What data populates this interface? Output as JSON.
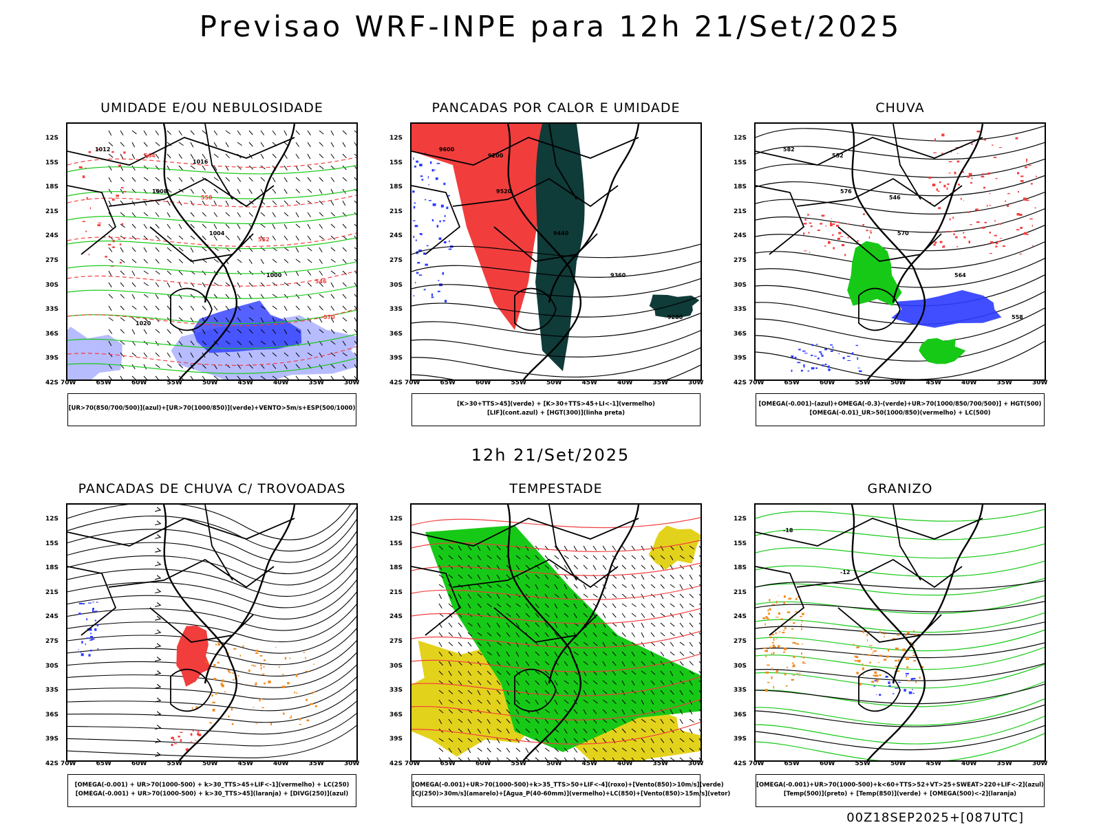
{
  "title": "Previsao WRF-INPE  para 12h 21/Set/2025",
  "mid_date": "12h 21/Set/2025",
  "run_stamp": "00Z18SEP2025+[087UTC]",
  "colors": {
    "blue": "#2b3bff",
    "green": "#17c917",
    "red": "#f23d3d",
    "darkteal": "#0f3b38",
    "yellow": "#e3d21b",
    "orange": "#f08a1f",
    "lightblue": "#aab0ff"
  },
  "axes": {
    "lat_ticks": [
      "12S",
      "15S",
      "18S",
      "21S",
      "24S",
      "27S",
      "30S",
      "33S",
      "36S",
      "39S",
      "42S"
    ],
    "lon_ticks": [
      "70W",
      "65W",
      "60W",
      "55W",
      "50W",
      "45W",
      "40W",
      "35W",
      "30W"
    ]
  },
  "chart_data": [
    {
      "type": "heatmap",
      "id": "umidade",
      "title": "UMIDADE E/OU NEBULOSIDADE",
      "legend": [
        "[UR>70(850/700/500)](azul)+[UR>70(1000/850)](verde)+VENTO>5m/s+ESP(500/1000)"
      ],
      "contour_labels": [
        "1012",
        "1008",
        "1004",
        "1000",
        "570",
        "564",
        "558",
        "552",
        "546",
        "1020",
        "1016"
      ]
    },
    {
      "type": "heatmap",
      "id": "pancadas-calor",
      "title": "PANCADAS POR CALOR E UMIDADE",
      "legend": [
        "[K>30+TTS>45](verde) + [K>30+TTS>45+LI<-1](vermelho)",
        "[LIF](cont.azul) + [HGT(300)](linha preta)"
      ],
      "contour_labels": [
        "9600",
        "9520",
        "9440",
        "9360",
        "9280",
        "9200"
      ]
    },
    {
      "type": "heatmap",
      "id": "chuva",
      "title": "CHUVA",
      "legend": [
        "[OMEGA(-0.001)-(azul)+OMEGA(-0.3)-(verde)+UR>70(1000/850/700/500)] + HGT(500)",
        "[OMEGA(-0.01)_UR>50(1000/850)(vermelho) + LC(500)"
      ],
      "contour_labels": [
        "582",
        "576",
        "570",
        "564",
        "558",
        "552",
        "546"
      ]
    },
    {
      "type": "heatmap",
      "id": "trovoadas",
      "title": "PANCADAS DE CHUVA C/ TROVOADAS",
      "legend": [
        "[OMEGA(-0.001) + UR>70(1000-500) + k>30_TTS>45+LIF<-1](vermelho) + LC(250)",
        "[OMEGA(-0.001) + UR>70(1000-500) + k>30_TTS>45](laranja) + [DIVG(250)](azul)"
      ],
      "contour_labels": []
    },
    {
      "type": "heatmap",
      "id": "tempestade",
      "title": "TEMPESTADE",
      "legend": [
        "[OMEGA(-0.001)+UR>70(1000-500)+k>35_TTS>50+LIF<-4](roxo)+[Vento(850)>10m/s](verde)",
        "[CJ(250)>30m/s](amarelo)+[Agua_P(40-60mm)](vermelho)+LC(850)+[Vento(850)>15m/s](vetor)"
      ],
      "contour_labels": []
    },
    {
      "type": "heatmap",
      "id": "granizo",
      "title": "GRANIZO",
      "legend": [
        "[OMEGA(-0.001)+UR>70(1000-500)+k<60+TTS>52+VT>25+SWEAT>220+LIF<-2](azul)",
        "[Temp(500)](preto) + [Temp(850)](verde) + [OMEGA(500)<-2](laranja)"
      ],
      "contour_labels": [
        "-18",
        "-12"
      ]
    }
  ]
}
